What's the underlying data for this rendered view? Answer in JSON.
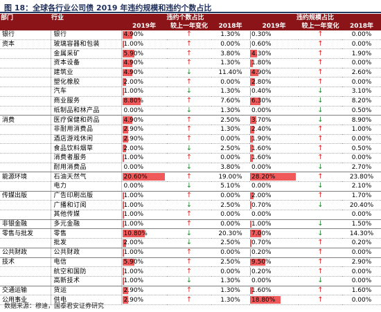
{
  "title": "图 18：全球各行业公司债 2019 年违约规模和违约个数占比",
  "header": {
    "dept": "部门",
    "industry": "行业",
    "count_group": "违约个数占比",
    "size_group": "违约规模占比",
    "y2019": "2019年",
    "change": "较上一年变化",
    "y2018": "2018年"
  },
  "rows": [
    {
      "dept": "银行",
      "industry": "银行",
      "c19": "4.90%",
      "cbar": 4.9,
      "cdir": "up",
      "c18": "1.30%",
      "s19": "0.30%",
      "sbar": 0.3,
      "sdir": "up",
      "s18": "0.00%"
    },
    {
      "dept": "资本",
      "industry": "玻璃容器和包装",
      "c19": "1.00%",
      "cbar": 1.0,
      "cdir": "up",
      "c18": "0.00%",
      "s19": "0.60%",
      "sbar": 0.6,
      "sdir": "up",
      "s18": "0.00%"
    },
    {
      "dept": "",
      "industry": "金属采矿",
      "c19": "5.90%",
      "cbar": 5.9,
      "cdir": "up",
      "c18": "3.80%",
      "s19": "4.30%",
      "sbar": 4.3,
      "sdir": "up",
      "s18": "1.90%"
    },
    {
      "dept": "",
      "industry": "资本设备",
      "c19": "4.90%",
      "cbar": 4.9,
      "cdir": "up",
      "c18": "1.30%",
      "s19": "1.80%",
      "sbar": 1.8,
      "sdir": "up",
      "s18": "0.00%"
    },
    {
      "dept": "",
      "industry": "建筑业",
      "c19": "4.90%",
      "cbar": 4.9,
      "cdir": "down",
      "c18": "11.40%",
      "s19": "4.90%",
      "sbar": 4.9,
      "sdir": "up",
      "s18": "2.60%"
    },
    {
      "dept": "",
      "industry": "塑化橡胶",
      "c19": "2.00%",
      "cbar": 2.0,
      "cdir": "up",
      "c18": "0.00%",
      "s19": "2.80%",
      "sbar": 2.8,
      "sdir": "up",
      "s18": "0.00%"
    },
    {
      "dept": "",
      "industry": "汽车",
      "c19": "1.00%",
      "cbar": 1.0,
      "cdir": "down",
      "c18": "1.30%",
      "s19": "0.40%",
      "sbar": 0.4,
      "sdir": "down",
      "s18": "3.10%"
    },
    {
      "dept": "",
      "industry": "商业服务",
      "c19": "8.80%",
      "cbar": 8.8,
      "cdir": "up",
      "c18": "7.60%",
      "s19": "6.30%",
      "sbar": 6.3,
      "sdir": "down",
      "s18": "8.20%"
    },
    {
      "dept": "",
      "industry": "纸制品和林产品",
      "c19": "0.00%",
      "cbar": 0,
      "cdir": "down",
      "c18": "1.30%",
      "s19": "0.00%",
      "sbar": 0,
      "sdir": "down",
      "s18": "0.50%",
      "grp": true
    },
    {
      "dept": "消费",
      "industry": "医疗保健和药品",
      "c19": "4.90%",
      "cbar": 4.9,
      "cdir": "up",
      "c18": "2.50%",
      "s19": "3.70%",
      "sbar": 3.7,
      "sdir": "down",
      "s18": "8.90%"
    },
    {
      "dept": "",
      "industry": "非耐用消费品",
      "c19": "2.90%",
      "cbar": 2.9,
      "cdir": "up",
      "c18": "1.30%",
      "s19": "2.40%",
      "sbar": 2.4,
      "sdir": "up",
      "s18": "1.00%"
    },
    {
      "dept": "",
      "industry": "酒店游戏休闲",
      "c19": "2.90%",
      "cbar": 2.9,
      "cdir": "up",
      "c18": "0.00%",
      "s19": "1.90%",
      "sbar": 1.9,
      "sdir": "up",
      "s18": "0.00%"
    },
    {
      "dept": "",
      "industry": "食品饮料烟草",
      "c19": "2.00%",
      "cbar": 2.0,
      "cdir": "down",
      "c18": "2.50%",
      "s19": "1.60%",
      "sbar": 1.6,
      "sdir": "up",
      "s18": "0.50%"
    },
    {
      "dept": "",
      "industry": "消费者服务",
      "c19": "1.00%",
      "cbar": 1.0,
      "cdir": "up",
      "c18": "0.00%",
      "s19": "1.60%",
      "sbar": 1.6,
      "sdir": "up",
      "s18": "0.00%"
    },
    {
      "dept": "",
      "industry": "耐用消费品",
      "c19": "0.00%",
      "cbar": 0,
      "cdir": "down",
      "c18": "3.80%",
      "s19": "0.00%",
      "sbar": 0,
      "sdir": "down",
      "s18": "2.70%",
      "grp": true
    },
    {
      "dept": "能源环境",
      "industry": "石油天然气",
      "c19": "20.60%",
      "cbar": 20.6,
      "cdir": "up",
      "c18": "19.00%",
      "s19": "28.20%",
      "sbar": 28.2,
      "sdir": "up",
      "s18": "23.80%"
    },
    {
      "dept": "",
      "industry": "电力",
      "c19": "0.00%",
      "cbar": 0,
      "cdir": "down",
      "c18": "5.10%",
      "s19": "0.00%",
      "sbar": 0,
      "sdir": "down",
      "s18": "2.10%",
      "grp": true
    },
    {
      "dept": "传媒出版",
      "industry": "广告印刷出版",
      "c19": "1.00%",
      "cbar": 1.0,
      "cdir": "up",
      "c18": "0.00%",
      "s19": "2.00%",
      "sbar": 2.0,
      "sdir": "up",
      "s18": "1.70%"
    },
    {
      "dept": "",
      "industry": "广播和订阅",
      "c19": "1.00%",
      "cbar": 1.0,
      "cdir": "down",
      "c18": "2.50%",
      "s19": "0.70%",
      "sbar": 0.7,
      "sdir": "down",
      "s18": "20.40%"
    },
    {
      "dept": "",
      "industry": "其他传媒",
      "c19": "1.00%",
      "cbar": 1.0,
      "cdir": "up",
      "c18": "0.00%",
      "s19": "0.00%",
      "sbar": 0,
      "sdir": "",
      "s18": "0.00%",
      "grp": true
    },
    {
      "dept": "非银金融",
      "industry": "多元金融",
      "c19": "1.00%",
      "cbar": 1.0,
      "cdir": "up",
      "c18": "0.00%",
      "s19": "1.00%",
      "sbar": 1.0,
      "sdir": "down",
      "s18": "1.50%",
      "grp": true
    },
    {
      "dept": "零售与批发",
      "industry": "零售",
      "c19": "10.80%",
      "cbar": 10.8,
      "cdir": "down",
      "c18": "20.30%",
      "s19": "7.00%",
      "sbar": 7.0,
      "sdir": "down",
      "s18": "14.30%"
    },
    {
      "dept": "",
      "industry": "批发",
      "c19": "2.00%",
      "cbar": 2.0,
      "cdir": "down",
      "c18": "2.50%",
      "s19": "0.70%",
      "sbar": 0.7,
      "sdir": "up",
      "s18": "0.20%",
      "grp": true
    },
    {
      "dept": "公共财政",
      "industry": "公共财政",
      "c19": "1.00%",
      "cbar": 1.0,
      "cdir": "up",
      "c18": "0.00%",
      "s19": "0.20%",
      "sbar": 0.2,
      "sdir": "up",
      "s18": "0.00%",
      "grp": true
    },
    {
      "dept": "技术",
      "industry": "电信",
      "c19": "5.90%",
      "cbar": 5.9,
      "cdir": "up",
      "c18": "2.50%",
      "s19": "9.50%",
      "sbar": 9.5,
      "sdir": "up",
      "s18": "2.90%"
    },
    {
      "dept": "",
      "industry": "航空和国防",
      "c19": "1.00%",
      "cbar": 1.0,
      "cdir": "up",
      "c18": "0.00%",
      "s19": "0.20%",
      "sbar": 0.2,
      "sdir": "up",
      "s18": "0.00%"
    },
    {
      "dept": "",
      "industry": "高新技术",
      "c19": "1.00%",
      "cbar": 1.0,
      "cdir": "down",
      "c18": "1.30%",
      "s19": "0.00%",
      "sbar": 0,
      "sdir": "down",
      "s18": "0.00%",
      "grp": true
    },
    {
      "dept": "交通运输",
      "industry": "货运",
      "c19": "2.90%",
      "cbar": 2.9,
      "cdir": "up",
      "c18": "1.30%",
      "s19": "1.60%",
      "sbar": 1.6,
      "sdir": "up",
      "s18": "1.60%"
    },
    {
      "dept": "公用事业",
      "industry": "供电",
      "c19": "2.90%",
      "cbar": 2.9,
      "cdir": "up",
      "c18": "1.30%",
      "s19": "18.80%",
      "sbar": 18.8,
      "sdir": "up",
      "s18": "0.00%"
    }
  ],
  "arrows": {
    "up": "↑",
    "down": "↓"
  },
  "colors": {
    "header_bg": "#8b1418",
    "bar": "#f0595a",
    "up": "#e02020",
    "down": "#1f8a2f"
  },
  "source": "数据来源：穆迪，国泰君安证券研究"
}
